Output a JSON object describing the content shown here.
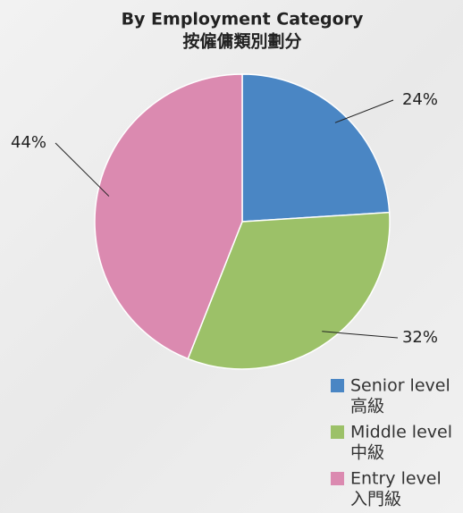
{
  "chart_data": {
    "type": "pie",
    "title": "By Employment Category",
    "subtitle": "按僱傭類別劃分",
    "categories": [
      "Senior level",
      "Middle level",
      "Entry level"
    ],
    "categories_zh": [
      "高級",
      "中級",
      "入門級"
    ],
    "values": [
      24,
      32,
      44
    ],
    "value_labels": [
      "24%",
      "32%",
      "44%"
    ],
    "colors": [
      "#4a86c4",
      "#9cc168",
      "#db8ab0"
    ]
  }
}
